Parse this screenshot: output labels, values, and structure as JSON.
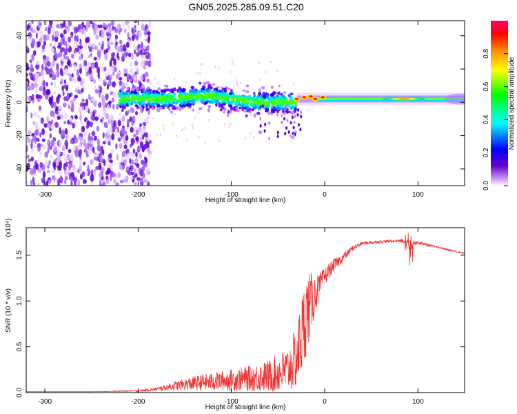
{
  "title": "GN05.2025.285.09.51.C20",
  "chart_data": [
    {
      "type": "heatmap",
      "title": "GN05.2025.285.09.51.C20",
      "xlabel": "Height of straight line (km)",
      "ylabel": "Frequency (Hz)",
      "xlim": [
        -320,
        150
      ],
      "ylim": [
        -50,
        49
      ],
      "xticks": [
        -300,
        -200,
        -100,
        0,
        100
      ],
      "yticks": [
        -40,
        -20,
        0,
        20,
        40
      ],
      "colorbar": {
        "label": "Normalized spectral amplitude",
        "range": [
          0.0,
          1.0
        ],
        "ticks": [
          "0.0",
          "0.2",
          "0.4",
          "0.6",
          "0.8"
        ],
        "colors": [
          "#ffffff",
          "#cc99ff",
          "#6600cc",
          "#0000ff",
          "#00ffff",
          "#00ff00",
          "#ffff00",
          "#ff8800",
          "#ff0000",
          "#ff0066"
        ]
      },
      "features": [
        {
          "name": "broadband noise",
          "x": [
            -320,
            -187
          ],
          "freq": [
            -50,
            49
          ],
          "amplitude": 0.1
        },
        {
          "name": "signal track",
          "x": [
            -220,
            -30
          ],
          "freq_center": [
            2,
            2,
            4,
            0,
            0
          ],
          "width_hz": 6,
          "amplitude": 0.45
        },
        {
          "name": "carrier line",
          "x": [
            -30,
            150
          ],
          "freq_center": 2,
          "width_hz": 3,
          "amplitude": 0.7,
          "peak_x": [
            60,
            110
          ],
          "peak_amplitude": 0.9
        }
      ]
    },
    {
      "type": "line",
      "xlabel": "Height of straight line (km)",
      "ylabel": "SNR (10 * v/v)",
      "y_multiplier": "(x10⁴)",
      "xlim": [
        -320,
        150
      ],
      "ylim": [
        0,
        1.8
      ],
      "xticks": [
        -300,
        -200,
        -100,
        0,
        100
      ],
      "yticks": [
        "0.0",
        "0.5",
        "1.0",
        "1.5"
      ],
      "color": "#ee3333",
      "x": [
        -320,
        -250,
        -200,
        -180,
        -160,
        -140,
        -120,
        -100,
        -80,
        -60,
        -40,
        -30,
        -25,
        -20,
        -15,
        -10,
        -5,
        0,
        10,
        20,
        30,
        40,
        60,
        80,
        90,
        100,
        120,
        150
      ],
      "y": [
        0.01,
        0.01,
        0.02,
        0.04,
        0.08,
        0.11,
        0.13,
        0.15,
        0.17,
        0.2,
        0.27,
        0.42,
        0.65,
        0.9,
        1.0,
        1.1,
        1.18,
        1.28,
        1.4,
        1.48,
        1.58,
        1.63,
        1.65,
        1.66,
        1.65,
        1.64,
        1.59,
        1.52
      ],
      "noise": [
        0.0,
        0.0,
        0.01,
        0.02,
        0.05,
        0.08,
        0.1,
        0.12,
        0.14,
        0.18,
        0.25,
        0.35,
        0.45,
        0.45,
        0.35,
        0.2,
        0.14,
        0.1,
        0.07,
        0.05,
        0.03,
        0.02,
        0.015,
        0.015,
        0.04,
        0.02,
        0.01,
        0.01
      ]
    }
  ]
}
